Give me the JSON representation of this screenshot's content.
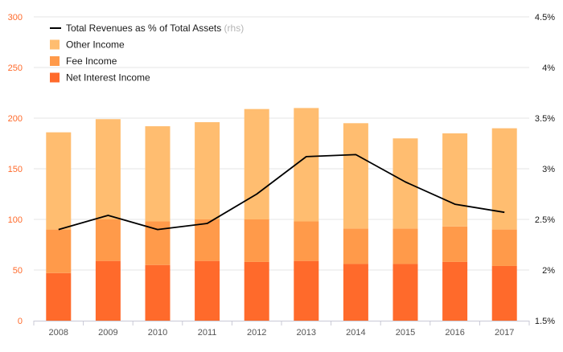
{
  "chart_data": {
    "type": "bar",
    "stacked": true,
    "categories": [
      "2008",
      "2009",
      "2010",
      "2011",
      "2012",
      "2013",
      "2014",
      "2015",
      "2016",
      "2017"
    ],
    "series": [
      {
        "name": "Net Interest Income",
        "color": "#ff6a2b",
        "values": [
          47,
          59,
          55,
          59,
          58,
          59,
          56,
          56,
          58,
          54
        ]
      },
      {
        "name": "Fee Income",
        "color": "#ff9a4a",
        "values": [
          43,
          41,
          43,
          41,
          42,
          39,
          35,
          35,
          35,
          36
        ]
      },
      {
        "name": "Other Income",
        "color": "#ffbd70",
        "values": [
          96,
          99,
          94,
          96,
          109,
          112,
          104,
          89,
          92,
          100
        ]
      }
    ],
    "line_series": {
      "name": "Total Revenues as % of Total Assets",
      "axis": "right",
      "color": "#000000",
      "values": [
        2.4,
        2.54,
        2.4,
        2.46,
        2.75,
        3.12,
        3.14,
        2.87,
        2.65,
        2.57
      ]
    },
    "y_left": {
      "min": 0,
      "max": 300,
      "ticks": [
        "0",
        "50",
        "100",
        "150",
        "200",
        "250",
        "300"
      ],
      "tick_color": "#ff6a2b"
    },
    "y_right": {
      "min": 1.5,
      "max": 4.5,
      "ticks": [
        "1.5%",
        "2%",
        "2.5%",
        "3%",
        "3.5%",
        "4%",
        "4.5%"
      ]
    },
    "legend": {
      "placement": "top-left",
      "items": [
        {
          "label": "Total Revenues as % of Total Assets",
          "suffix": "(rhs)",
          "kind": "line",
          "color": "#000000"
        },
        {
          "label": "Other Income",
          "kind": "box",
          "color": "#ffbd70"
        },
        {
          "label": "Fee Income",
          "kind": "box",
          "color": "#ff9a4a"
        },
        {
          "label": "Net Interest Income",
          "kind": "box",
          "color": "#ff6a2b"
        }
      ]
    },
    "grid": true
  }
}
